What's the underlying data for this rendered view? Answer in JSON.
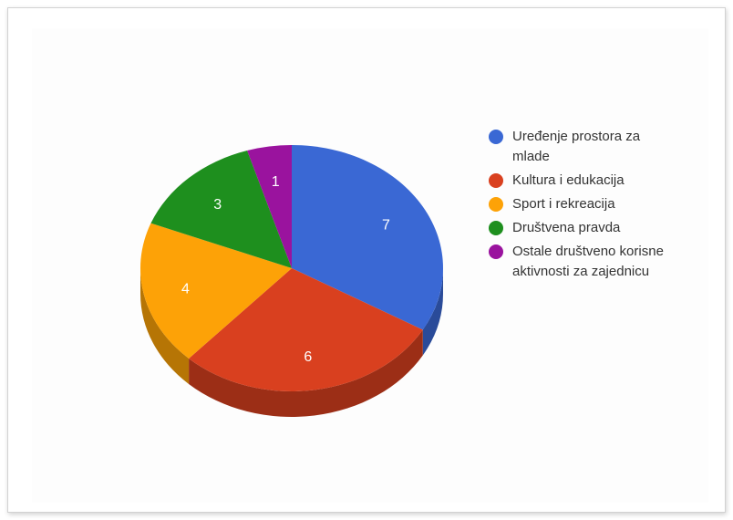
{
  "colors": {
    "blue": "#3a68d4",
    "red": "#d9401f",
    "orange": "#fda207",
    "green": "#1e8f1e",
    "purple": "#9a139e"
  },
  "chart_data": {
    "type": "pie",
    "style": "3d",
    "title": "",
    "legend_position": "right",
    "categories": [
      "Uređenje prostora za mlade",
      "Kultura i edukacija",
      "Sport i rekreacija",
      "Društvena pravda",
      "Ostale društveno korisne aktivnosti za zajednicu"
    ],
    "values": [
      7,
      6,
      4,
      3,
      1
    ],
    "value_labels": [
      "7",
      "6",
      "4",
      "3",
      "1"
    ],
    "colors": [
      "#3a68d4",
      "#d9401f",
      "#fda207",
      "#1e8f1e",
      "#9a139e"
    ]
  }
}
